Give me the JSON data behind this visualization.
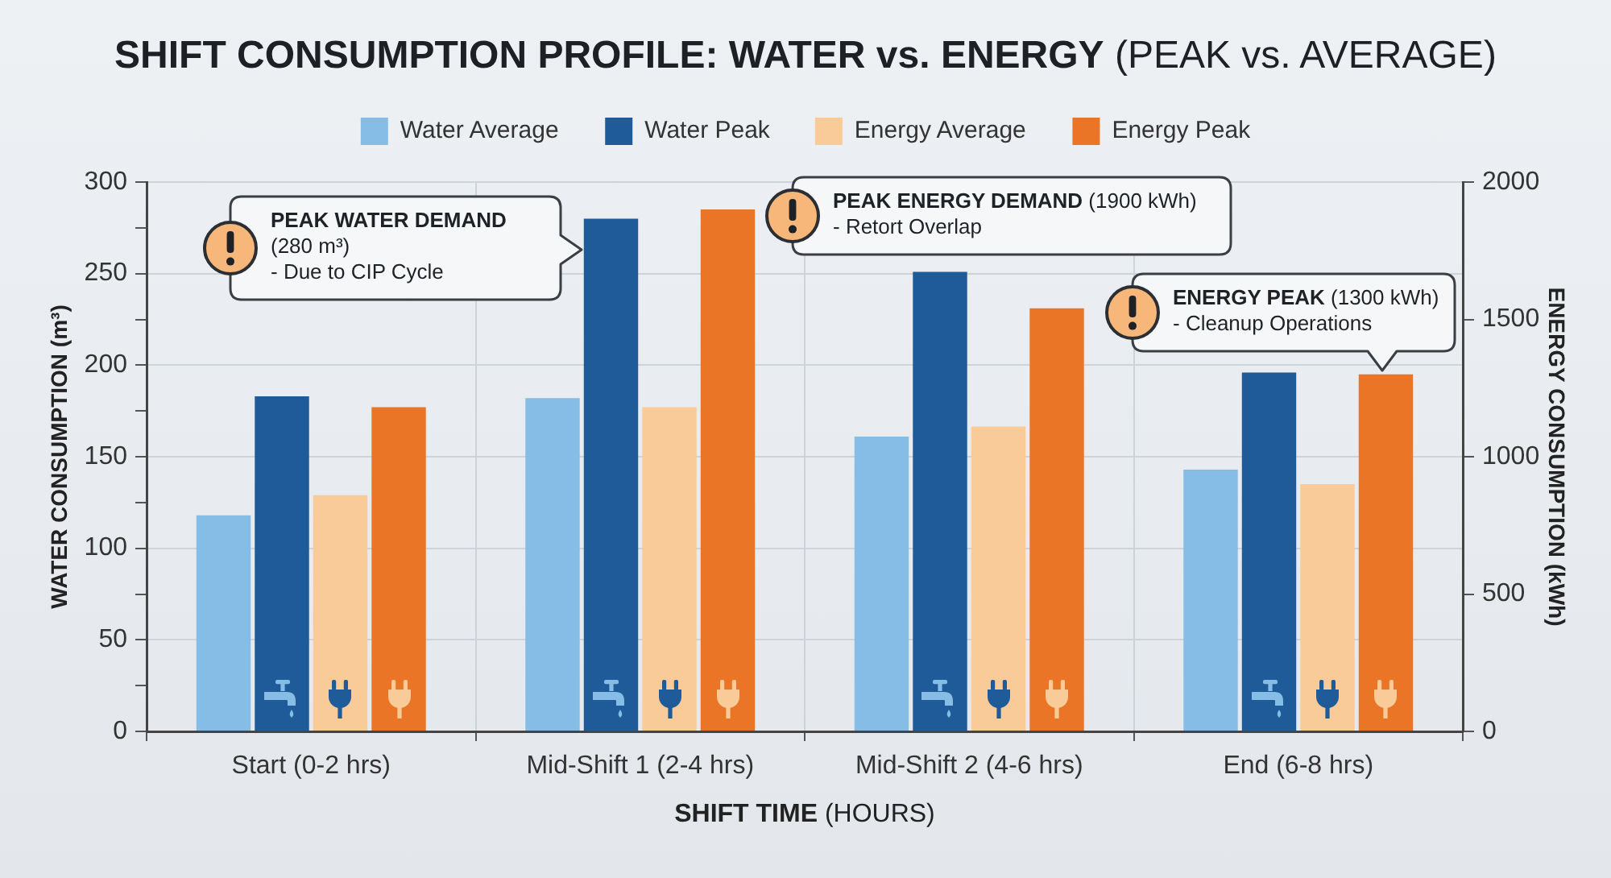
{
  "chart_data": {
    "type": "bar",
    "title": "SHIFT CONSUMPTION PROFILE: WATER vs. ENERGY (PEAK vs. AVERAGE)",
    "xlabel": "SHIFT TIME (HOURS)",
    "ylabel": "WATER CONSUMPTION (m³)",
    "y2label": "ENERGY CONSUMPTION (kWh)",
    "categories": [
      "Start (0-2 hrs)",
      "Mid-Shift 1 (2-4 hrs)",
      "Mid-Shift 2 (4-6 hrs)",
      "End (6-8 hrs)"
    ],
    "series": [
      {
        "name": "Water Average",
        "color": "#86bde6",
        "values": [
          118,
          182,
          161,
          143
        ]
      },
      {
        "name": "Water Peak",
        "color": "#1f5b98",
        "values": [
          183,
          280,
          251,
          196
        ]
      },
      {
        "name": "Energy Average",
        "color": "#f8cb98",
        "values": [
          860,
          1180,
          1110,
          900
        ],
        "axis": "y2"
      },
      {
        "name": "Energy Peak",
        "color": "#eb7527",
        "values": [
          1180,
          1900,
          1540,
          1300
        ],
        "axis": "y2"
      }
    ],
    "ylim": [
      0,
      300
    ],
    "yticks": [
      0,
      {
        "value": 25,
        "label": null
      },
      50,
      {
        "value": 75,
        "label": null
      },
      100,
      {
        "value": 125,
        "label": null
      },
      150,
      {
        "value": 175,
        "label": null
      },
      200,
      {
        "value": 225,
        "label": null
      },
      250,
      {
        "value": 275,
        "label": null
      },
      300
    ],
    "y2lim": [
      0,
      2000
    ],
    "y2ticks": [
      0,
      500,
      1000,
      1500,
      2000
    ],
    "grid": true,
    "legend": "top",
    "annotations": [
      "PEAK WATER DEMAND (280 m³)\n- Due to CIP Cycle",
      "PEAK ENERGY DEMAND (1900 kWh)\n- Retort Overlap",
      "ENERGY PEAK (1300 kWh)\n- Cleanup Operations"
    ]
  }
}
